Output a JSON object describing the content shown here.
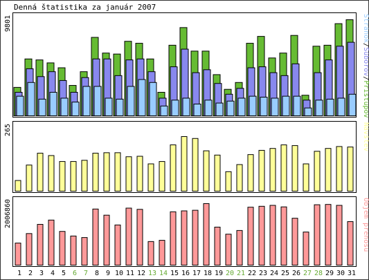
{
  "chart_data": {
    "type": "bar",
    "title": "Denná štatistika za január 2007",
    "days": [
      "1",
      "2",
      "3",
      "4",
      "5",
      "6",
      "7",
      "8",
      "9",
      "10",
      "11",
      "12",
      "13",
      "14",
      "15",
      "16",
      "17",
      "18",
      "19",
      "20",
      "21",
      "22",
      "23",
      "24",
      "25",
      "26",
      "27",
      "28",
      "29",
      "30",
      "31"
    ],
    "weekend_days": [
      "6",
      "7",
      "13",
      "14",
      "20",
      "21",
      "27",
      "28"
    ],
    "panels": [
      {
        "name": "traffic",
        "ymax": 9801,
        "ymax_label": "9801",
        "legend": [
          {
            "label": "Stránok",
            "color": "#99ccff"
          },
          {
            "label": "/",
            "color": "#000000"
          },
          {
            "label": "Súborov",
            "color": "#8888ee"
          },
          {
            "label": "/",
            "color": "#000000"
          },
          {
            "label": "Prístupov",
            "color": "#66bb33"
          }
        ],
        "series": [
          {
            "name": "Prístupov",
            "color": "#66bb33",
            "values": [
              2900,
              5800,
              5700,
              5400,
              4900,
              3100,
              4500,
              8000,
              6400,
              6300,
              7600,
              7400,
              5800,
              2400,
              7200,
              9000,
              6600,
              6600,
              4200,
              2700,
              3400,
              7400,
              8100,
              5900,
              6400,
              8200,
              2100,
              7100,
              7200,
              9400,
              9801
            ]
          },
          {
            "name": "Súborov",
            "color": "#8888ee",
            "values": [
              2400,
              4800,
              4000,
              4500,
              3600,
              2400,
              3900,
              5800,
              5800,
              4100,
              5700,
              5800,
              4500,
              1800,
              5000,
              6800,
              4400,
              4700,
              3300,
              2200,
              2800,
              4900,
              5000,
              4400,
              4100,
              5300,
              1600,
              4400,
              5700,
              7100,
              7500
            ]
          },
          {
            "name": "Stránok",
            "color": "#99ccff",
            "values": [
              2000,
              3400,
              1700,
              2400,
              1800,
              1400,
              3000,
              3000,
              1800,
              1700,
              3000,
              3700,
              3400,
              1000,
              1600,
              1800,
              1200,
              1600,
              1300,
              1500,
              1800,
              2000,
              1900,
              1800,
              2000,
              2000,
              800,
              1600,
              1700,
              1800,
              2200
            ]
          }
        ]
      },
      {
        "name": "visits",
        "ymax": 265,
        "ymax_label": "265",
        "legend": [
          {
            "label": "Návštev",
            "color": "#ffff99"
          }
        ],
        "series": [
          {
            "name": "Návštev",
            "color": "#ffff99",
            "values": [
              45,
              110,
              160,
              150,
              125,
              125,
              130,
              160,
              162,
              162,
              145,
              147,
              115,
              125,
              195,
              230,
              222,
              170,
              152,
              82,
              112,
              154,
              172,
              180,
              195,
              192,
              115,
              168,
              180,
              188,
              186
            ]
          }
        ]
      },
      {
        "name": "transfer",
        "ymax": 2006860,
        "ymax_label": "2006860",
        "legend": [
          {
            "label": "Objem prenosu",
            "color": "#ff9999"
          }
        ],
        "series": [
          {
            "name": "Objem prenosu",
            "color": "#ff9999",
            "values": [
              720000,
              1030000,
              1330000,
              1470000,
              1100000,
              950000,
              900000,
              1830000,
              1630000,
              1310000,
              1860000,
              1820000,
              770000,
              810000,
              1740000,
              1770000,
              1790000,
              2006860,
              1240000,
              1010000,
              1130000,
              1890000,
              1920000,
              1950000,
              1900000,
              1530000,
              1080000,
              1970000,
              1980000,
              1950000,
              1420000
            ]
          }
        ]
      }
    ]
  }
}
